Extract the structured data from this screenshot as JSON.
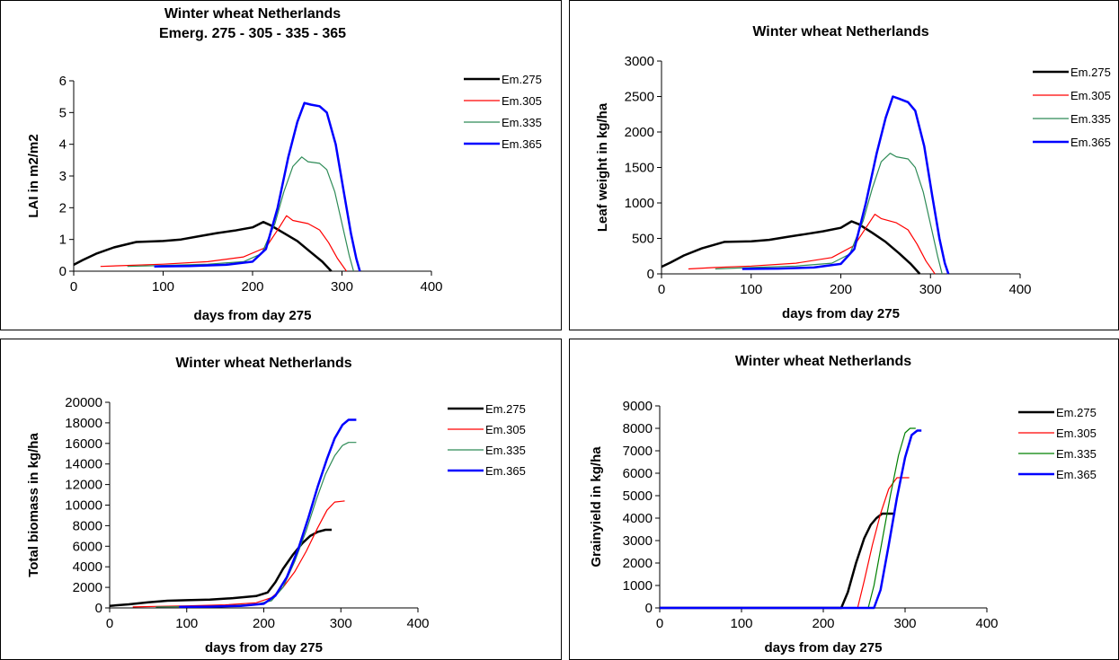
{
  "chart_data": [
    {
      "type": "line",
      "title_lines": [
        "Winter wheat Netherlands",
        "Emerg. 275 - 305 - 335 - 365"
      ],
      "xlabel": "days from day 275",
      "ylabel": "LAI in m2/m2",
      "xlim": [
        0,
        400
      ],
      "ylim": [
        0,
        6
      ],
      "xticks": [
        0,
        100,
        200,
        300,
        400
      ],
      "yticks": [
        0,
        1,
        2,
        3,
        4,
        5,
        6
      ],
      "legend_position": "right",
      "series": [
        {
          "name": "Em.275",
          "color": "#000000",
          "width": 2.5,
          "points": [
            [
              0,
              0.2
            ],
            [
              10,
              0.35
            ],
            [
              25,
              0.55
            ],
            [
              45,
              0.75
            ],
            [
              70,
              0.92
            ],
            [
              100,
              0.95
            ],
            [
              120,
              1.0
            ],
            [
              140,
              1.1
            ],
            [
              160,
              1.2
            ],
            [
              180,
              1.28
            ],
            [
              200,
              1.38
            ],
            [
              212,
              1.55
            ],
            [
              220,
              1.45
            ],
            [
              235,
              1.2
            ],
            [
              250,
              0.95
            ],
            [
              265,
              0.6
            ],
            [
              278,
              0.3
            ],
            [
              288,
              0.0
            ]
          ]
        },
        {
          "name": "Em.305",
          "color": "#ff0000",
          "width": 1.2,
          "points": [
            [
              30,
              0.15
            ],
            [
              60,
              0.18
            ],
            [
              100,
              0.22
            ],
            [
              150,
              0.3
            ],
            [
              190,
              0.45
            ],
            [
              215,
              0.75
            ],
            [
              228,
              1.3
            ],
            [
              238,
              1.75
            ],
            [
              245,
              1.6
            ],
            [
              262,
              1.5
            ],
            [
              275,
              1.3
            ],
            [
              285,
              0.9
            ],
            [
              295,
              0.4
            ],
            [
              305,
              0.0
            ]
          ]
        },
        {
          "name": "Em.335",
          "color": "#2e8b57",
          "width": 1.2,
          "points": [
            [
              60,
              0.15
            ],
            [
              100,
              0.18
            ],
            [
              150,
              0.22
            ],
            [
              190,
              0.3
            ],
            [
              210,
              0.55
            ],
            [
              225,
              1.5
            ],
            [
              235,
              2.5
            ],
            [
              245,
              3.3
            ],
            [
              255,
              3.6
            ],
            [
              262,
              3.45
            ],
            [
              275,
              3.4
            ],
            [
              283,
              3.2
            ],
            [
              292,
              2.5
            ],
            [
              300,
              1.5
            ],
            [
              308,
              0.5
            ],
            [
              313,
              0.0
            ]
          ]
        },
        {
          "name": "Em.365",
          "color": "#0000ff",
          "width": 2.5,
          "points": [
            [
              90,
              0.15
            ],
            [
              130,
              0.16
            ],
            [
              170,
              0.2
            ],
            [
              200,
              0.3
            ],
            [
              215,
              0.7
            ],
            [
              228,
              2.0
            ],
            [
              240,
              3.6
            ],
            [
              250,
              4.7
            ],
            [
              258,
              5.3
            ],
            [
              265,
              5.25
            ],
            [
              275,
              5.2
            ],
            [
              283,
              5.0
            ],
            [
              293,
              4.0
            ],
            [
              302,
              2.5
            ],
            [
              310,
              1.2
            ],
            [
              316,
              0.4
            ],
            [
              320,
              0.0
            ]
          ]
        }
      ]
    },
    {
      "type": "line",
      "title_lines": [
        "Winter wheat Netherlands"
      ],
      "xlabel": "days from day 275",
      "ylabel": "Leaf weight in kg/ha",
      "xlim": [
        0,
        400
      ],
      "ylim": [
        0,
        3000
      ],
      "xticks": [
        0,
        100,
        200,
        300,
        400
      ],
      "yticks": [
        0,
        500,
        1000,
        1500,
        2000,
        2500,
        3000
      ],
      "legend_position": "right",
      "series": [
        {
          "name": "Em.275",
          "color": "#000000",
          "width": 2.5,
          "points": [
            [
              0,
              100
            ],
            [
              10,
              160
            ],
            [
              25,
              260
            ],
            [
              45,
              360
            ],
            [
              70,
              450
            ],
            [
              100,
              460
            ],
            [
              120,
              480
            ],
            [
              140,
              520
            ],
            [
              160,
              560
            ],
            [
              180,
              600
            ],
            [
              200,
              650
            ],
            [
              212,
              740
            ],
            [
              220,
              700
            ],
            [
              235,
              580
            ],
            [
              250,
              450
            ],
            [
              265,
              290
            ],
            [
              278,
              140
            ],
            [
              288,
              0
            ]
          ]
        },
        {
          "name": "Em.305",
          "color": "#ff0000",
          "width": 1.2,
          "points": [
            [
              30,
              70
            ],
            [
              60,
              90
            ],
            [
              100,
              110
            ],
            [
              150,
              150
            ],
            [
              190,
              230
            ],
            [
              215,
              400
            ],
            [
              228,
              650
            ],
            [
              238,
              840
            ],
            [
              245,
              780
            ],
            [
              262,
              720
            ],
            [
              275,
              620
            ],
            [
              285,
              420
            ],
            [
              295,
              180
            ],
            [
              305,
              0
            ]
          ]
        },
        {
          "name": "Em.335",
          "color": "#2e8b57",
          "width": 1.2,
          "points": [
            [
              60,
              70
            ],
            [
              100,
              90
            ],
            [
              150,
              110
            ],
            [
              190,
              150
            ],
            [
              210,
              280
            ],
            [
              225,
              750
            ],
            [
              235,
              1200
            ],
            [
              245,
              1580
            ],
            [
              255,
              1700
            ],
            [
              262,
              1650
            ],
            [
              275,
              1620
            ],
            [
              283,
              1500
            ],
            [
              292,
              1150
            ],
            [
              300,
              700
            ],
            [
              308,
              250
            ],
            [
              313,
              0
            ]
          ]
        },
        {
          "name": "Em.365",
          "color": "#0000ff",
          "width": 2.5,
          "points": [
            [
              90,
              70
            ],
            [
              130,
              75
            ],
            [
              170,
              90
            ],
            [
              200,
              140
            ],
            [
              215,
              350
            ],
            [
              228,
              1000
            ],
            [
              240,
              1700
            ],
            [
              250,
              2200
            ],
            [
              258,
              2500
            ],
            [
              265,
              2470
            ],
            [
              275,
              2420
            ],
            [
              283,
              2300
            ],
            [
              293,
              1800
            ],
            [
              302,
              1100
            ],
            [
              310,
              500
            ],
            [
              316,
              150
            ],
            [
              320,
              0
            ]
          ]
        }
      ]
    },
    {
      "type": "line",
      "title_lines": [
        "Winter wheat Netherlands"
      ],
      "xlabel": "days from day 275",
      "ylabel": "Total biomass in kg/ha",
      "xlim": [
        0,
        400
      ],
      "ylim": [
        0,
        20000
      ],
      "xticks": [
        0,
        100,
        200,
        300,
        400
      ],
      "yticks": [
        0,
        2000,
        4000,
        6000,
        8000,
        10000,
        12000,
        14000,
        16000,
        18000,
        20000
      ],
      "legend_position": "right",
      "series": [
        {
          "name": "Em.275",
          "color": "#000000",
          "width": 2.5,
          "points": [
            [
              0,
              200
            ],
            [
              25,
              350
            ],
            [
              50,
              550
            ],
            [
              75,
              700
            ],
            [
              100,
              750
            ],
            [
              130,
              800
            ],
            [
              160,
              950
            ],
            [
              190,
              1150
            ],
            [
              205,
              1500
            ],
            [
              215,
              2500
            ],
            [
              225,
              3800
            ],
            [
              238,
              5200
            ],
            [
              250,
              6300
            ],
            [
              260,
              7000
            ],
            [
              270,
              7400
            ],
            [
              280,
              7600
            ],
            [
              288,
              7600
            ]
          ]
        },
        {
          "name": "Em.305",
          "color": "#ff0000",
          "width": 1.2,
          "points": [
            [
              30,
              100
            ],
            [
              60,
              150
            ],
            [
              100,
              200
            ],
            [
              150,
              300
            ],
            [
              190,
              500
            ],
            [
              210,
              1000
            ],
            [
              225,
              2000
            ],
            [
              240,
              3500
            ],
            [
              255,
              5500
            ],
            [
              270,
              7800
            ],
            [
              282,
              9500
            ],
            [
              292,
              10300
            ],
            [
              305,
              10400
            ]
          ]
        },
        {
          "name": "Em.335",
          "color": "#2e8b57",
          "width": 1.2,
          "points": [
            [
              60,
              100
            ],
            [
              100,
              120
            ],
            [
              150,
              200
            ],
            [
              190,
              350
            ],
            [
              210,
              700
            ],
            [
              225,
              2000
            ],
            [
              240,
              4500
            ],
            [
              255,
              7500
            ],
            [
              268,
              10500
            ],
            [
              280,
              13000
            ],
            [
              292,
              14800
            ],
            [
              302,
              15800
            ],
            [
              310,
              16100
            ],
            [
              320,
              16100
            ]
          ]
        },
        {
          "name": "Em.365",
          "color": "#0000ff",
          "width": 2.5,
          "points": [
            [
              90,
              100
            ],
            [
              130,
              120
            ],
            [
              170,
              200
            ],
            [
              200,
              400
            ],
            [
              215,
              1200
            ],
            [
              230,
              3000
            ],
            [
              245,
              5800
            ],
            [
              258,
              8800
            ],
            [
              270,
              11800
            ],
            [
              282,
              14500
            ],
            [
              292,
              16500
            ],
            [
              302,
              17800
            ],
            [
              310,
              18300
            ],
            [
              320,
              18300
            ]
          ]
        }
      ]
    },
    {
      "type": "line",
      "title_lines": [
        "Winter wheat Netherlands"
      ],
      "xlabel": "days from day 275",
      "ylabel": "Grainyield in kg/ha",
      "xlim": [
        0,
        400
      ],
      "ylim": [
        0,
        9000
      ],
      "xticks": [
        0,
        100,
        200,
        300,
        400
      ],
      "yticks": [
        0,
        1000,
        2000,
        3000,
        4000,
        5000,
        6000,
        7000,
        8000,
        9000
      ],
      "legend_position": "right",
      "series": [
        {
          "name": "Em.275",
          "color": "#000000",
          "width": 2.5,
          "points": [
            [
              0,
              0
            ],
            [
              222,
              0
            ],
            [
              230,
              700
            ],
            [
              240,
              2000
            ],
            [
              250,
              3100
            ],
            [
              258,
              3700
            ],
            [
              265,
              4000
            ],
            [
              272,
              4200
            ],
            [
              288,
              4200
            ]
          ]
        },
        {
          "name": "Em.305",
          "color": "#ff0000",
          "width": 1.2,
          "points": [
            [
              0,
              0
            ],
            [
              242,
              0
            ],
            [
              250,
              1200
            ],
            [
              260,
              2800
            ],
            [
              270,
              4200
            ],
            [
              280,
              5300
            ],
            [
              290,
              5800
            ],
            [
              305,
              5800
            ]
          ]
        },
        {
          "name": "Em.335",
          "color": "#008000",
          "width": 1.2,
          "points": [
            [
              0,
              0
            ],
            [
              255,
              0
            ],
            [
              262,
              1000
            ],
            [
              272,
              3000
            ],
            [
              282,
              5000
            ],
            [
              292,
              6800
            ],
            [
              300,
              7800
            ],
            [
              306,
              8000
            ],
            [
              313,
              8000
            ]
          ]
        },
        {
          "name": "Em.365",
          "color": "#0000ff",
          "width": 2.5,
          "points": [
            [
              0,
              0
            ],
            [
              262,
              0
            ],
            [
              270,
              800
            ],
            [
              280,
              2800
            ],
            [
              290,
              4900
            ],
            [
              300,
              6700
            ],
            [
              308,
              7700
            ],
            [
              315,
              7900
            ],
            [
              320,
              7900
            ]
          ]
        }
      ]
    }
  ]
}
